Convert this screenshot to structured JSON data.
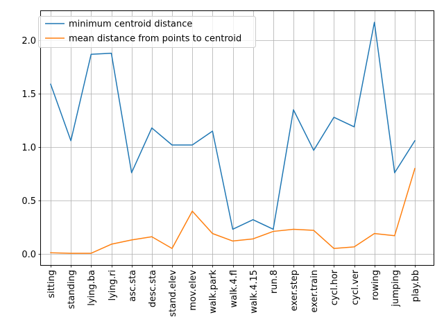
{
  "chart_data": {
    "type": "line",
    "categories": [
      "sitting",
      "standing",
      "lying.ba",
      "lying.ri",
      "asc.sta",
      "desc.sta",
      "stand.elev",
      "mov.elev",
      "walk.park",
      "walk.4.fl",
      "walk.4.15",
      "run.8",
      "exer.step",
      "exer.train",
      "cycl.hor",
      "cycl.ver",
      "rowing",
      "jumping",
      "play.bb"
    ],
    "series": [
      {
        "name": "minimum centroid distance",
        "color": "#1f77b4",
        "values": [
          1.59,
          1.06,
          1.87,
          1.88,
          0.76,
          1.18,
          1.02,
          1.02,
          1.15,
          0.23,
          0.32,
          0.23,
          1.35,
          0.97,
          1.28,
          1.19,
          2.17,
          0.76,
          1.06
        ]
      },
      {
        "name": "mean distance from points to centroid",
        "color": "#ff7f0e",
        "values": [
          0.01,
          0.005,
          0.005,
          0.09,
          0.13,
          0.16,
          0.05,
          0.4,
          0.19,
          0.12,
          0.14,
          0.21,
          0.23,
          0.22,
          0.05,
          0.065,
          0.19,
          0.17,
          0.8
        ]
      }
    ],
    "yticks": [
      "0.0",
      "0.5",
      "1.0",
      "1.5",
      "2.0"
    ],
    "ylim": [
      -0.105,
      2.275
    ],
    "grid": true,
    "legend_position": "top-left",
    "title": "",
    "xlabel": "",
    "ylabel": ""
  }
}
